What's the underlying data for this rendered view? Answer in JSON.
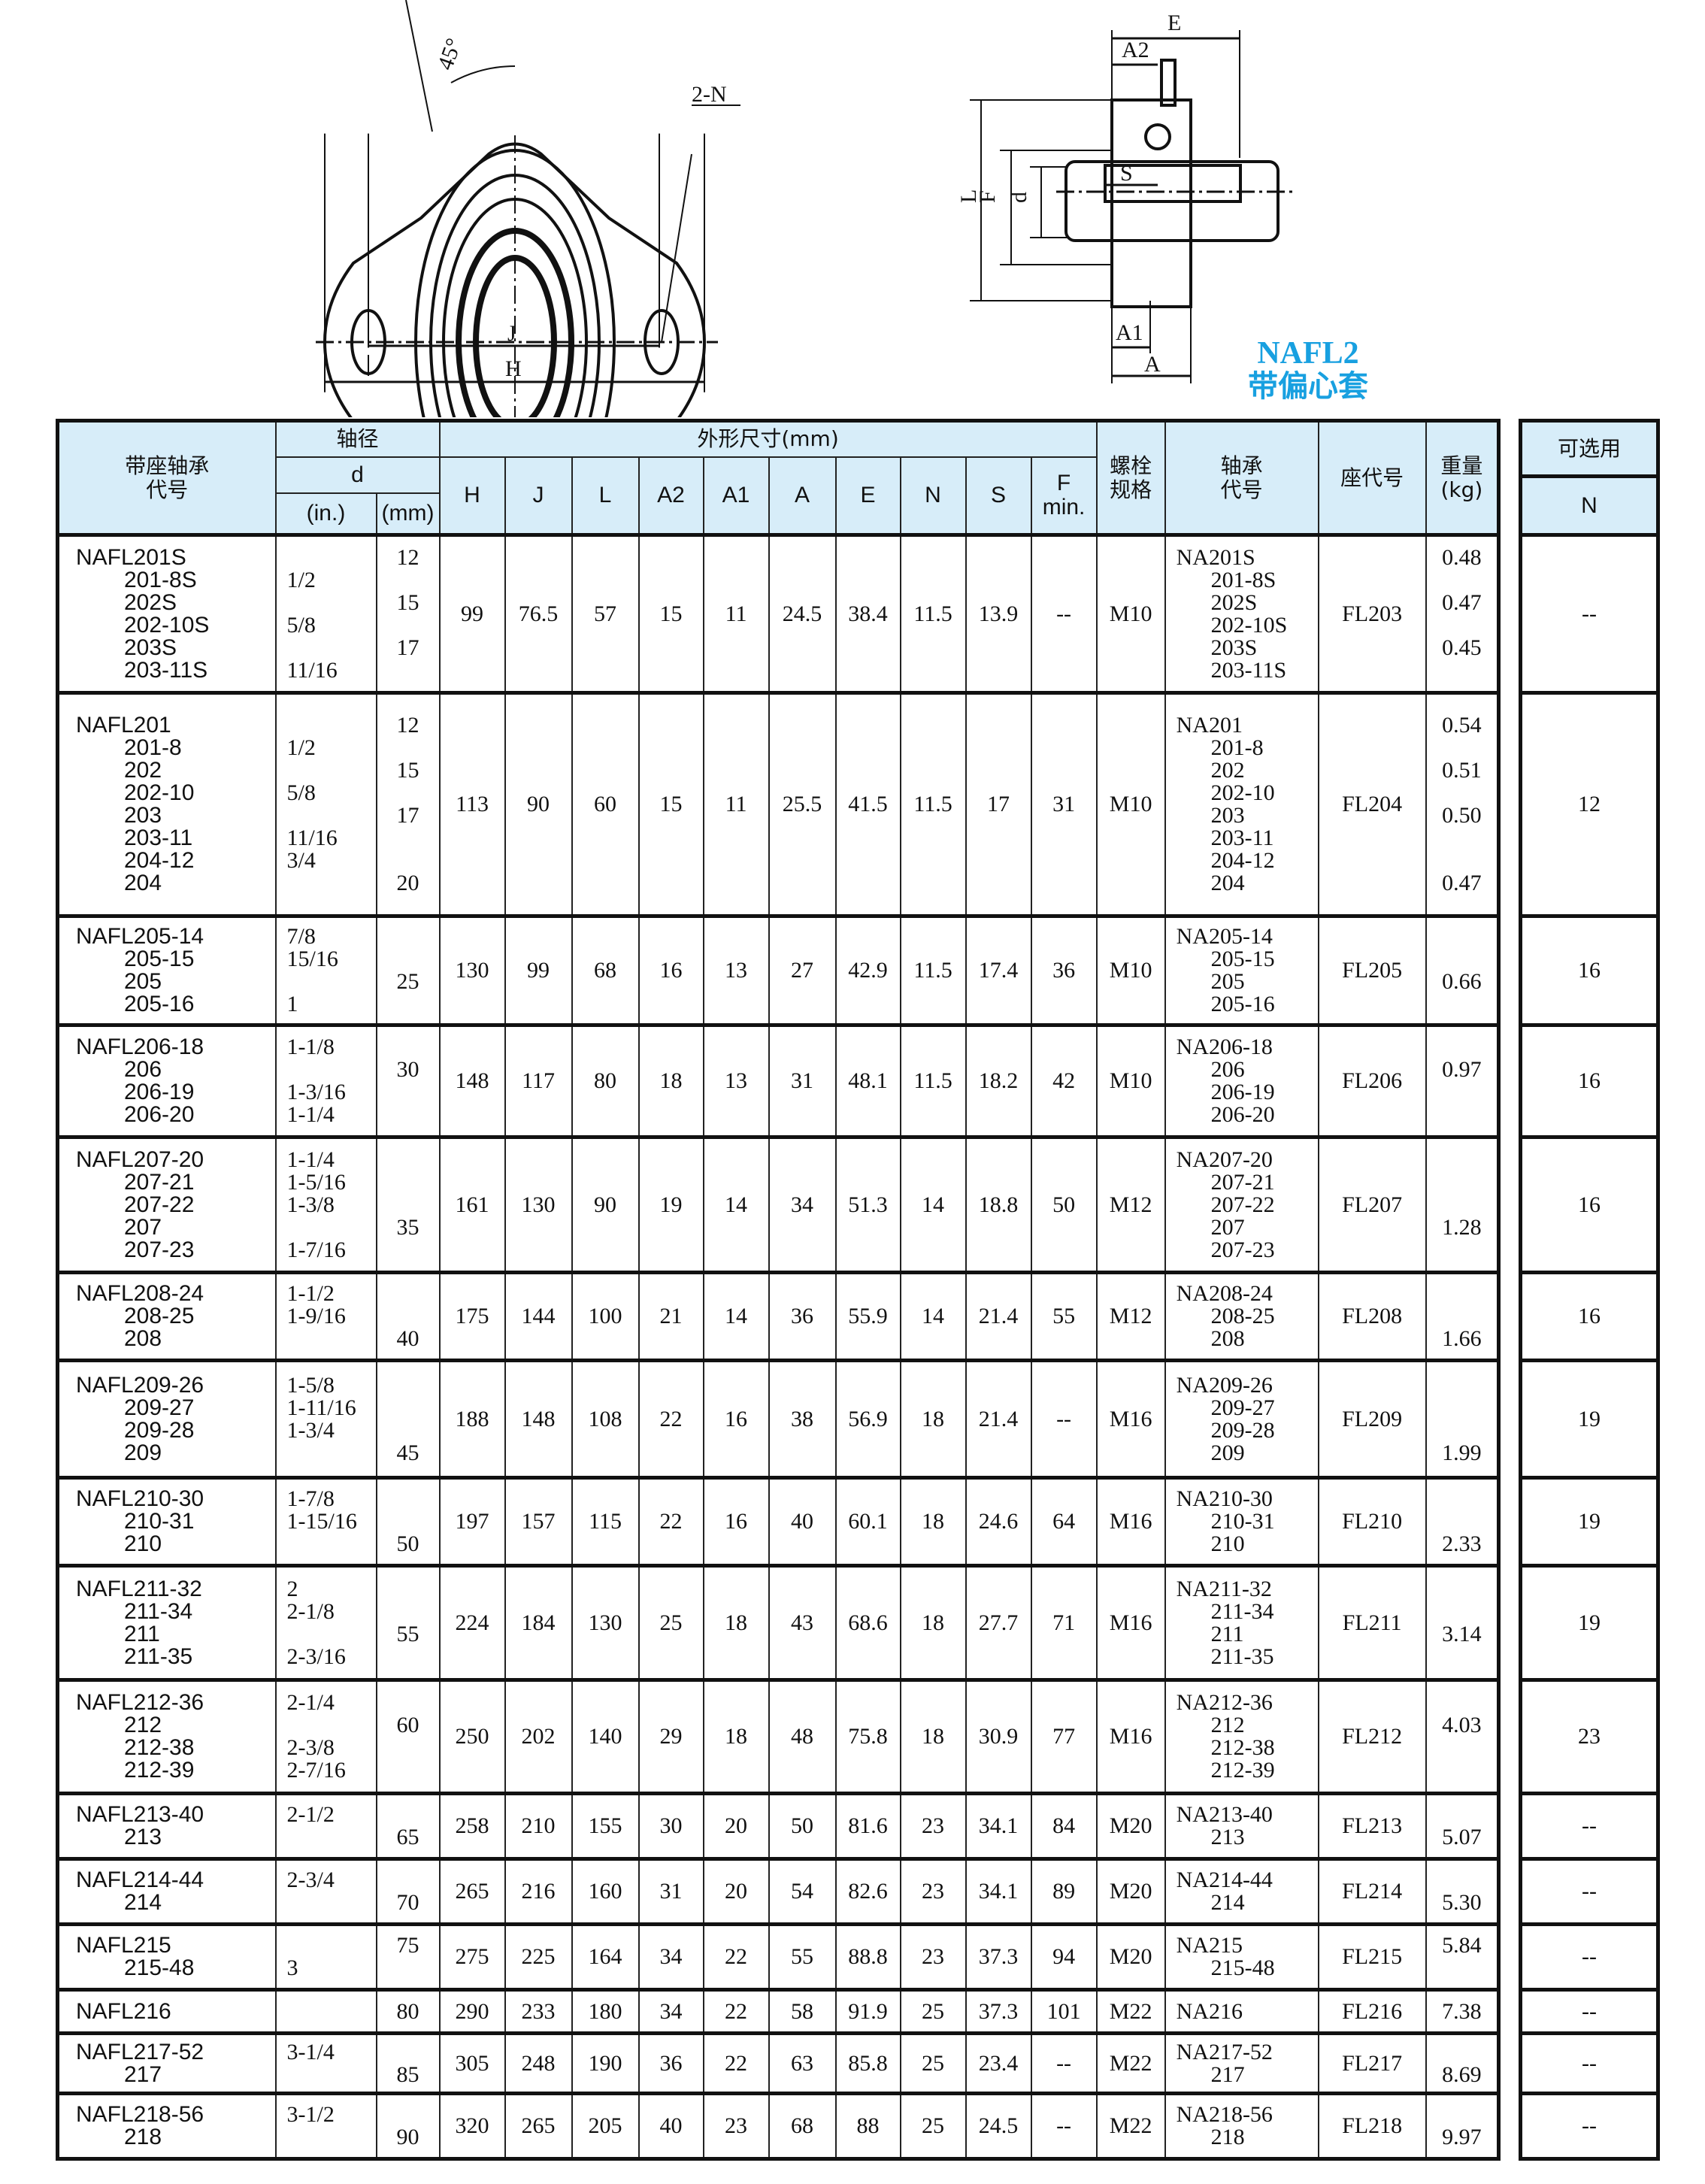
{
  "diagram": {
    "labels": {
      "angle": "45°",
      "holes": "2-N",
      "J": "J",
      "H": "H",
      "E": "E",
      "A2": "A2",
      "L": "L",
      "F": "F",
      "d": "d",
      "S": "S",
      "A1": "A1",
      "A": "A"
    },
    "series": "NAFL2",
    "series_note": "带偏心套",
    "accent_color": "#18a0e0",
    "header_bg": "#d7edf9"
  },
  "headers": {
    "unit_no": "带座轴承\n代号",
    "shaft": "轴径",
    "d": "d",
    "in": "(in.)",
    "mm": "(mm)",
    "dims": "外形尺寸(mm)",
    "cols": [
      "H",
      "J",
      "L",
      "A2",
      "A1",
      "A",
      "E",
      "N",
      "S",
      "F\nmin."
    ],
    "bolt": "螺栓\n规格",
    "bearing": "轴承\n代号",
    "housing": "座代号",
    "weight": "重量\n(kg)",
    "optional": "可选用",
    "N": "N"
  },
  "rows": [
    {
      "models": [
        "NAFL201S",
        "201-8S",
        "202S",
        "202-10S",
        "203S",
        "203-11S"
      ],
      "inch": [
        "",
        "1/2",
        "",
        "5/8",
        "",
        "11/16"
      ],
      "mm": [
        "12",
        "",
        "15",
        "",
        "17",
        ""
      ],
      "dims": [
        "99",
        "76.5",
        "57",
        "15",
        "11",
        "24.5",
        "38.4",
        "11.5",
        "13.9",
        "--"
      ],
      "bolt": "M10",
      "bearings": [
        "NA201S",
        "201-8S",
        "202S",
        "202-10S",
        "203S",
        "203-11S"
      ],
      "housing": "FL203",
      "weights": [
        "0.48",
        "",
        "0.47",
        "",
        "0.45",
        ""
      ],
      "n": "--"
    },
    {
      "models": [
        "NAFL201",
        "201-8",
        "202",
        "202-10",
        "203",
        "203-11",
        "204-12",
        "204"
      ],
      "inch": [
        "",
        "1/2",
        "",
        "5/8",
        "",
        "11/16",
        "3/4",
        ""
      ],
      "mm": [
        "12",
        "",
        "15",
        "",
        "17",
        "",
        "",
        "20"
      ],
      "dims": [
        "113",
        "90",
        "60",
        "15",
        "11",
        "25.5",
        "41.5",
        "11.5",
        "17",
        "31"
      ],
      "bolt": "M10",
      "bearings": [
        "NA201",
        "201-8",
        "202",
        "202-10",
        "203",
        "203-11",
        "204-12",
        "204"
      ],
      "housing": "FL204",
      "weights": [
        "0.54",
        "",
        "0.51",
        "",
        "0.50",
        "",
        "",
        "0.47"
      ],
      "n": "12"
    },
    {
      "models": [
        "NAFL205-14",
        "205-15",
        "205",
        "205-16"
      ],
      "inch": [
        "7/8",
        "15/16",
        "",
        "1"
      ],
      "mm": [
        "",
        "",
        "25",
        ""
      ],
      "dims": [
        "130",
        "99",
        "68",
        "16",
        "13",
        "27",
        "42.9",
        "11.5",
        "17.4",
        "36"
      ],
      "bolt": "M10",
      "bearings": [
        "NA205-14",
        "205-15",
        "205",
        "205-16"
      ],
      "housing": "FL205",
      "weights": [
        "",
        "",
        "0.66",
        ""
      ],
      "n": "16"
    },
    {
      "models": [
        "NAFL206-18",
        "206",
        "206-19",
        "206-20"
      ],
      "inch": [
        "1-1/8",
        "",
        "1-3/16",
        "1-1/4"
      ],
      "mm": [
        "",
        "30",
        "",
        ""
      ],
      "dims": [
        "148",
        "117",
        "80",
        "18",
        "13",
        "31",
        "48.1",
        "11.5",
        "18.2",
        "42"
      ],
      "bolt": "M10",
      "bearings": [
        "NA206-18",
        "206",
        "206-19",
        "206-20"
      ],
      "housing": "FL206",
      "weights": [
        "",
        "0.97",
        "",
        ""
      ],
      "n": "16"
    },
    {
      "models": [
        "NAFL207-20",
        "207-21",
        "207-22",
        "207",
        "207-23"
      ],
      "inch": [
        "1-1/4",
        "1-5/16",
        "1-3/8",
        "",
        "1-7/16"
      ],
      "mm": [
        "",
        "",
        "",
        "35",
        ""
      ],
      "dims": [
        "161",
        "130",
        "90",
        "19",
        "14",
        "34",
        "51.3",
        "14",
        "18.8",
        "50"
      ],
      "bolt": "M12",
      "bearings": [
        "NA207-20",
        "207-21",
        "207-22",
        "207",
        "207-23"
      ],
      "housing": "FL207",
      "weights": [
        "",
        "",
        "",
        "1.28",
        ""
      ],
      "n": "16"
    },
    {
      "models": [
        "NAFL208-24",
        "208-25",
        "208"
      ],
      "inch": [
        "1-1/2",
        "1-9/16",
        ""
      ],
      "mm": [
        "",
        "",
        "40"
      ],
      "dims": [
        "175",
        "144",
        "100",
        "21",
        "14",
        "36",
        "55.9",
        "14",
        "21.4",
        "55"
      ],
      "bolt": "M12",
      "bearings": [
        "NA208-24",
        "208-25",
        "208"
      ],
      "housing": "FL208",
      "weights": [
        "",
        "",
        "1.66"
      ],
      "n": "16"
    },
    {
      "models": [
        "NAFL209-26",
        "209-27",
        "209-28",
        "209"
      ],
      "inch": [
        "1-5/8",
        "1-11/16",
        "1-3/4",
        ""
      ],
      "mm": [
        "",
        "",
        "",
        "45"
      ],
      "dims": [
        "188",
        "148",
        "108",
        "22",
        "16",
        "38",
        "56.9",
        "18",
        "21.4",
        "--"
      ],
      "bolt": "M16",
      "bearings": [
        "NA209-26",
        "209-27",
        "209-28",
        "209"
      ],
      "housing": "FL209",
      "weights": [
        "",
        "",
        "",
        "1.99"
      ],
      "n": "19"
    },
    {
      "models": [
        "NAFL210-30",
        "210-31",
        "210"
      ],
      "inch": [
        "1-7/8",
        "1-15/16",
        ""
      ],
      "mm": [
        "",
        "",
        "50"
      ],
      "dims": [
        "197",
        "157",
        "115",
        "22",
        "16",
        "40",
        "60.1",
        "18",
        "24.6",
        "64"
      ],
      "bolt": "M16",
      "bearings": [
        "NA210-30",
        "210-31",
        "210"
      ],
      "housing": "FL210",
      "weights": [
        "",
        "",
        "2.33"
      ],
      "n": "19"
    },
    {
      "models": [
        "NAFL211-32",
        "211-34",
        "211",
        "211-35"
      ],
      "inch": [
        "2",
        "2-1/8",
        "",
        "2-3/16"
      ],
      "mm": [
        "",
        "",
        "55",
        ""
      ],
      "dims": [
        "224",
        "184",
        "130",
        "25",
        "18",
        "43",
        "68.6",
        "18",
        "27.7",
        "71"
      ],
      "bolt": "M16",
      "bearings": [
        "NA211-32",
        "211-34",
        "211",
        "211-35"
      ],
      "housing": "FL211",
      "weights": [
        "",
        "",
        "3.14",
        ""
      ],
      "n": "19"
    },
    {
      "models": [
        "NAFL212-36",
        "212",
        "212-38",
        "212-39"
      ],
      "inch": [
        "2-1/4",
        "",
        "2-3/8",
        "2-7/16"
      ],
      "mm": [
        "",
        "60",
        "",
        ""
      ],
      "dims": [
        "250",
        "202",
        "140",
        "29",
        "18",
        "48",
        "75.8",
        "18",
        "30.9",
        "77"
      ],
      "bolt": "M16",
      "bearings": [
        "NA212-36",
        "212",
        "212-38",
        "212-39"
      ],
      "housing": "FL212",
      "weights": [
        "",
        "4.03",
        "",
        ""
      ],
      "n": "23"
    },
    {
      "models": [
        "NAFL213-40",
        "213"
      ],
      "inch": [
        "2-1/2",
        ""
      ],
      "mm": [
        "",
        "65"
      ],
      "dims": [
        "258",
        "210",
        "155",
        "30",
        "20",
        "50",
        "81.6",
        "23",
        "34.1",
        "84"
      ],
      "bolt": "M20",
      "bearings": [
        "NA213-40",
        "213"
      ],
      "housing": "FL213",
      "weights": [
        "",
        "5.07"
      ],
      "n": "--"
    },
    {
      "models": [
        "NAFL214-44",
        "214"
      ],
      "inch": [
        "2-3/4",
        ""
      ],
      "mm": [
        "",
        "70"
      ],
      "dims": [
        "265",
        "216",
        "160",
        "31",
        "20",
        "54",
        "82.6",
        "23",
        "34.1",
        "89"
      ],
      "bolt": "M20",
      "bearings": [
        "NA214-44",
        "214"
      ],
      "housing": "FL214",
      "weights": [
        "",
        "5.30"
      ],
      "n": "--"
    },
    {
      "models": [
        "NAFL215",
        "215-48"
      ],
      "inch": [
        "",
        "3"
      ],
      "mm": [
        "75",
        ""
      ],
      "dims": [
        "275",
        "225",
        "164",
        "34",
        "22",
        "55",
        "88.8",
        "23",
        "37.3",
        "94"
      ],
      "bolt": "M20",
      "bearings": [
        "NA215",
        "215-48"
      ],
      "housing": "FL215",
      "weights": [
        "5.84",
        ""
      ],
      "n": "--"
    },
    {
      "models": [
        "NAFL216"
      ],
      "inch": [
        ""
      ],
      "mm": [
        "80"
      ],
      "dims": [
        "290",
        "233",
        "180",
        "34",
        "22",
        "58",
        "91.9",
        "25",
        "37.3",
        "101"
      ],
      "bolt": "M22",
      "bearings": [
        "NA216"
      ],
      "housing": "FL216",
      "weights": [
        "7.38"
      ],
      "n": "--"
    },
    {
      "models": [
        "NAFL217-52",
        "217"
      ],
      "inch": [
        "3-1/4",
        ""
      ],
      "mm": [
        "",
        "85"
      ],
      "dims": [
        "305",
        "248",
        "190",
        "36",
        "22",
        "63",
        "85.8",
        "25",
        "23.4",
        "--"
      ],
      "bolt": "M22",
      "bearings": [
        "NA217-52",
        "217"
      ],
      "housing": "FL217",
      "weights": [
        "",
        "8.69"
      ],
      "n": "--"
    },
    {
      "models": [
        "NAFL218-56",
        "218"
      ],
      "inch": [
        "3-1/2",
        ""
      ],
      "mm": [
        "",
        "90"
      ],
      "dims": [
        "320",
        "265",
        "205",
        "40",
        "23",
        "68",
        "88",
        "25",
        "24.5",
        "--"
      ],
      "bolt": "M22",
      "bearings": [
        "NA218-56",
        "218"
      ],
      "housing": "FL218",
      "weights": [
        "",
        "9.97"
      ],
      "n": "--"
    }
  ]
}
